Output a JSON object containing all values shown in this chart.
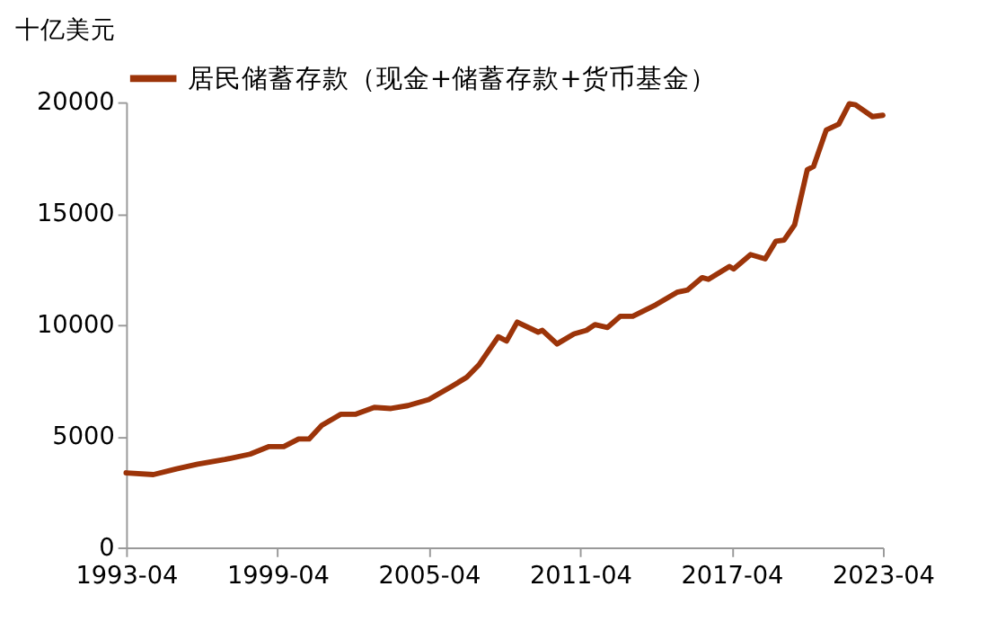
{
  "chart_data": {
    "type": "line",
    "ylabel": "十亿美元",
    "x": [
      "1993-04",
      "1994-05",
      "1995-04",
      "1996-02",
      "1997-03",
      "1998-03",
      "1998-12",
      "1999-07",
      "2000-02",
      "2000-07",
      "2001-01",
      "2001-10",
      "2002-05",
      "2003-02",
      "2003-10",
      "2004-06",
      "2005-04",
      "2006-03",
      "2006-10",
      "2007-04",
      "2008-01",
      "2008-05",
      "2008-10",
      "2009-08",
      "2009-10",
      "2010-05",
      "2011-01",
      "2011-07",
      "2011-11",
      "2012-05",
      "2012-11",
      "2013-05",
      "2014-04",
      "2015-02",
      "2015-07",
      "2016-02",
      "2016-05",
      "2017-03",
      "2017-05",
      "2018-01",
      "2018-08",
      "2019-01",
      "2019-05",
      "2019-10",
      "2020-04",
      "2020-07",
      "2021-01",
      "2021-07",
      "2021-12",
      "2022-03",
      "2022-11",
      "2023-04"
    ],
    "series": [
      {
        "name": "居民储蓄存款（现金+储蓄存款+货币基金）",
        "color": "#9c3409",
        "values": [
          3350,
          3270,
          3530,
          3740,
          3950,
          4190,
          4530,
          4530,
          4870,
          4870,
          5480,
          5980,
          5980,
          6290,
          6240,
          6370,
          6640,
          7240,
          7640,
          8220,
          9460,
          9270,
          10120,
          9670,
          9750,
          9140,
          9590,
          9750,
          10010,
          9880,
          10380,
          10380,
          10900,
          11460,
          11560,
          12120,
          12040,
          12620,
          12510,
          13150,
          12960,
          13750,
          13800,
          14490,
          16960,
          17110,
          18750,
          19010,
          19930,
          19880,
          19350,
          19410
        ]
      }
    ],
    "xlim": [
      "1993-04",
      "2023-04"
    ],
    "xticks": [
      "1993-04",
      "1999-04",
      "2005-04",
      "2011-04",
      "2017-04",
      "2023-04"
    ],
    "ylim": [
      0,
      20000
    ],
    "yticks": [
      0,
      5000,
      10000,
      15000,
      20000
    ],
    "grid": false,
    "legend": "top",
    "line_style": "solid",
    "marker": "none"
  }
}
